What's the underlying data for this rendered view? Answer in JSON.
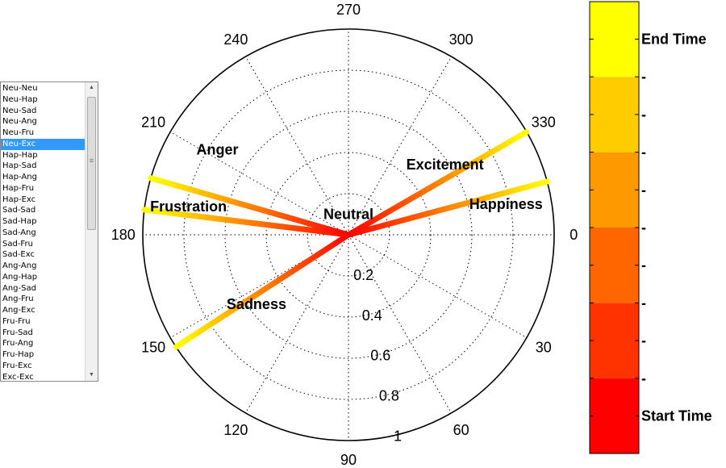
{
  "listbox": {
    "items": [
      "Neu-Neu",
      "Neu-Hap",
      "Neu-Sad",
      "Neu-Ang",
      "Neu-Fru",
      "Neu-Exc",
      "Hap-Hap",
      "Hap-Sad",
      "Hap-Ang",
      "Hap-Fru",
      "Hap-Exc",
      "Sad-Sad",
      "Sad-Hap",
      "Sad-Ang",
      "Sad-Fru",
      "Sad-Exc",
      "Ang-Ang",
      "Ang-Hap",
      "Ang-Sad",
      "Ang-Fru",
      "Ang-Exc",
      "Fru-Fru",
      "Fru-Sad",
      "Fru-Ang",
      "Fru-Hap",
      "Fru-Exc",
      "Exc-Exc"
    ],
    "selected_index": 5,
    "scroll_up_icon": "triangle-up",
    "scroll_down_icon": "triangle-down"
  },
  "chart_data": {
    "type": "polar-line",
    "angle_ticks": [
      0,
      30,
      60,
      90,
      120,
      150,
      180,
      210,
      240,
      270,
      300,
      330
    ],
    "angle_tick_labels": [
      "0",
      "30",
      "60",
      "90",
      "120",
      "150",
      "180",
      "210",
      "240",
      "270",
      "300",
      "330"
    ],
    "radial_ticks": [
      0.2,
      0.4,
      0.6,
      0.8,
      1
    ],
    "radial_tick_labels": [
      "0.2",
      "0.4",
      "0.6",
      "0.8",
      "1"
    ],
    "rlim": [
      0,
      1
    ],
    "grid": true,
    "emotion_labels": [
      {
        "text": "Neutral",
        "angle": 270,
        "r": 0.1
      },
      {
        "text": "Happiness",
        "angle": 349,
        "r": 0.78
      },
      {
        "text": "Excitement",
        "angle": 324,
        "r": 0.58
      },
      {
        "text": "Anger",
        "angle": 213,
        "r": 0.76
      },
      {
        "text": "Frustration",
        "angle": 190,
        "r": 0.79
      },
      {
        "text": "Sadness",
        "angle": 143,
        "r": 0.56
      }
    ],
    "series": [
      {
        "angle": 330,
        "r": 1.0
      },
      {
        "angle": 345,
        "r": 1.0
      },
      {
        "angle": 196,
        "r": 1.0
      },
      {
        "angle": 187,
        "r": 1.0
      },
      {
        "angle": 147,
        "r": 1.0
      }
    ],
    "colorbar": {
      "colors": [
        "#ff0000",
        "#ff3300",
        "#ff6600",
        "#ff9900",
        "#ffcc00",
        "#ffff00"
      ],
      "tick_labels": [
        "Start Time",
        "-",
        "-",
        "-",
        "-",
        "-",
        "-",
        "-",
        "-",
        "-",
        "End Time"
      ]
    }
  }
}
